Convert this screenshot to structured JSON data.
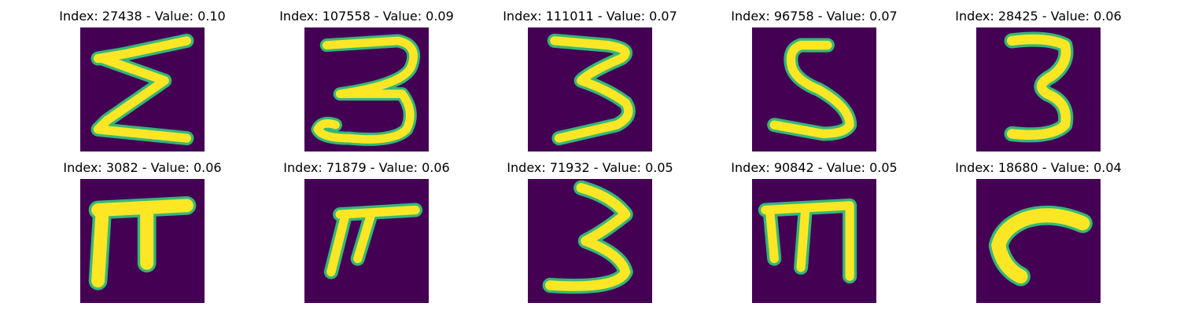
{
  "figure": {
    "cells": [
      {
        "label": "Index: 27438 - Value: 0.10",
        "index": 27438,
        "value": 0.1,
        "glyph": "sigma-shape"
      },
      {
        "label": "Index: 107558 - Value: 0.09",
        "index": 107558,
        "value": 0.09,
        "glyph": "three-shape"
      },
      {
        "label": "Index: 111011 - Value: 0.07",
        "index": 111011,
        "value": 0.07,
        "glyph": "three-shape"
      },
      {
        "label": "Index: 96758 - Value: 0.07",
        "index": 96758,
        "value": 0.07,
        "glyph": "s-shape"
      },
      {
        "label": "Index: 28425 - Value: 0.06",
        "index": 28425,
        "value": 0.06,
        "glyph": "three-shape"
      },
      {
        "label": "Index: 3082 - Value: 0.06",
        "index": 3082,
        "value": 0.06,
        "glyph": "pi-shape"
      },
      {
        "label": "Index: 71879 - Value: 0.06",
        "index": 71879,
        "value": 0.06,
        "glyph": "pi-shape"
      },
      {
        "label": "Index: 71932 - Value: 0.05",
        "index": 71932,
        "value": 0.05,
        "glyph": "three-shape"
      },
      {
        "label": "Index: 90842 - Value: 0.05",
        "index": 90842,
        "value": 0.05,
        "glyph": "m-shape"
      },
      {
        "label": "Index: 18680 - Value: 0.04",
        "index": 18680,
        "value": 0.04,
        "glyph": "hook-shape"
      }
    ],
    "colors": {
      "background": "#440154",
      "stroke": "#fde725",
      "stroke_edge": "#35b779",
      "page": "#ffffff"
    }
  }
}
